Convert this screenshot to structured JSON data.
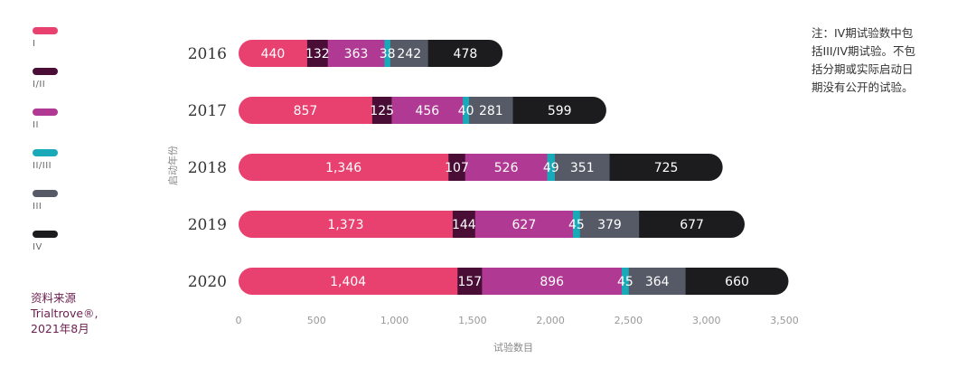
{
  "chart_data": {
    "type": "bar",
    "orientation": "horizontal",
    "stacked": true,
    "categories": [
      "2016",
      "2017",
      "2018",
      "2019",
      "2020"
    ],
    "series": [
      {
        "name": "I",
        "color": "#e8416f",
        "values": [
          440,
          857,
          1346,
          1373,
          1404
        ],
        "labels": [
          "440",
          "857",
          "1,346",
          "1,373",
          "1,404"
        ]
      },
      {
        "name": "I/II",
        "color": "#4a0d36",
        "values": [
          132,
          125,
          107,
          144,
          157
        ],
        "labels": [
          "132",
          "125",
          "107",
          "144",
          "157"
        ]
      },
      {
        "name": "II",
        "color": "#b03a93",
        "values": [
          363,
          456,
          526,
          627,
          896
        ],
        "labels": [
          "363",
          "456",
          "526",
          "627",
          "896"
        ]
      },
      {
        "name": "II/III",
        "color": "#19a9b8",
        "values": [
          38,
          40,
          49,
          45,
          45
        ],
        "labels": [
          "38",
          "40",
          "49",
          "45",
          "45"
        ]
      },
      {
        "name": "III",
        "color": "#555a66",
        "values": [
          242,
          281,
          351,
          379,
          364
        ],
        "labels": [
          "242",
          "281",
          "351",
          "379",
          "364"
        ]
      },
      {
        "name": "IV",
        "color": "#1c1c1e",
        "values": [
          478,
          599,
          725,
          677,
          660
        ],
        "labels": [
          "478",
          "599",
          "725",
          "677",
          "660"
        ]
      }
    ],
    "xlim": [
      0,
      3500
    ],
    "x_ticks": [
      0,
      500,
      1000,
      1500,
      2000,
      2500,
      3000,
      3500
    ],
    "x_tick_labels": [
      "0",
      "500",
      "1,000",
      "1,500",
      "2,000",
      "2,500",
      "3,000",
      "3,500"
    ],
    "xlabel": "试验数目",
    "ylabel": "启动年份",
    "legend_position": "left",
    "grid": false
  },
  "note": [
    "注：IV期试验数中包",
    "括III/IV期试验。不包",
    "括分期或实际启动日",
    "期没有公开的试验。"
  ],
  "source": [
    "资料来源",
    "Trialtrove®,",
    "2021年8月"
  ]
}
